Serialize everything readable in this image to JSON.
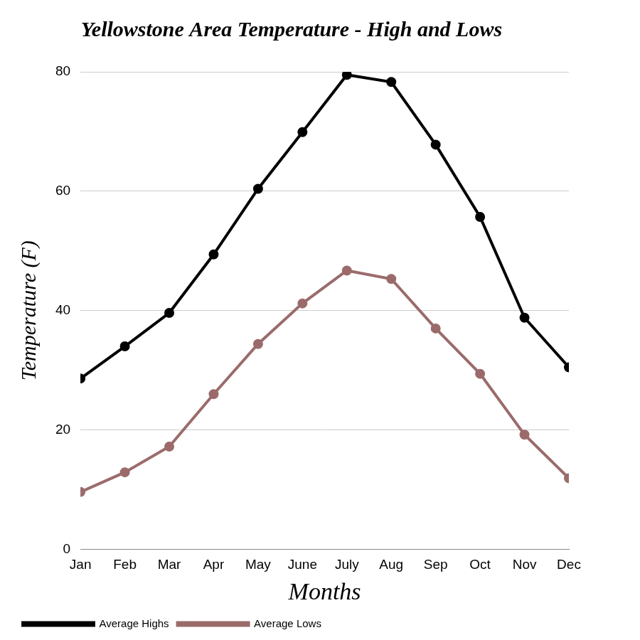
{
  "chart_data": {
    "type": "line",
    "title": "Yellowstone Area Temperature - High and Lows",
    "x_label": "Months",
    "y_label": "Temperature (F)",
    "categories": [
      "Jan",
      "Feb",
      "Mar",
      "Apr",
      "May",
      "June",
      "July",
      "Aug",
      "Sep",
      "Oct",
      "Nov",
      "Dec"
    ],
    "series": [
      {
        "name": "Average Highs",
        "color": "#000000",
        "marker": "circle",
        "values": [
          28.6,
          34.0,
          39.6,
          49.4,
          60.4,
          69.9,
          79.5,
          78.3,
          67.8,
          55.7,
          38.8,
          30.5
        ]
      },
      {
        "name": "Average Lows",
        "color": "#9b6b6b",
        "marker": "circle",
        "values": [
          9.6,
          12.9,
          17.2,
          26.0,
          34.4,
          41.2,
          46.7,
          45.3,
          37.0,
          29.4,
          19.2,
          11.9
        ]
      }
    ],
    "ylim": [
      0,
      80
    ],
    "yticks": [
      0,
      20,
      40,
      60,
      80
    ],
    "grid": true,
    "legend": "bottom"
  }
}
